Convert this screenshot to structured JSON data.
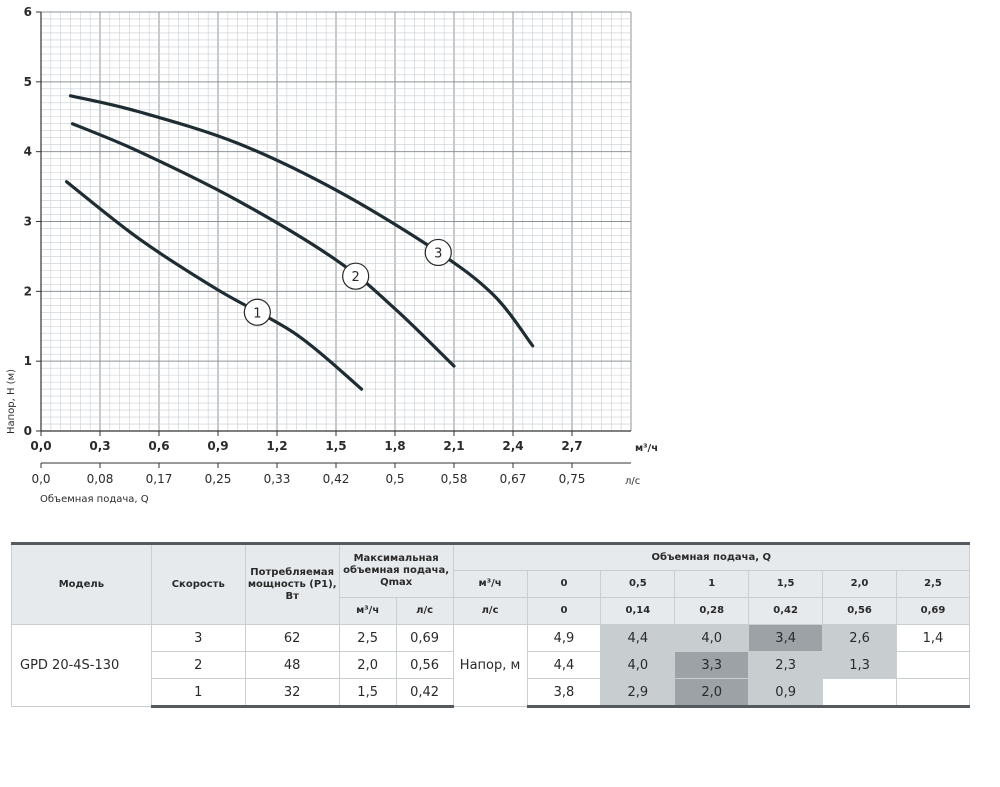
{
  "chart_data": {
    "type": "line",
    "ylabel": "Напор, Н (м)",
    "xlabel": "Объемная подача, Q",
    "x_unit_top": "м³/ч",
    "x_unit_bottom": "л/с",
    "xlim": [
      0,
      3.0
    ],
    "ylim": [
      0,
      6
    ],
    "grid": true,
    "y_ticks": [
      "0",
      "1",
      "2",
      "3",
      "4",
      "5",
      "6"
    ],
    "x_ticks_top": [
      "0,0",
      "0,3",
      "0,6",
      "0,9",
      "1,2",
      "1,5",
      "1,8",
      "2,1",
      "2,4",
      "2,7"
    ],
    "x_ticks_bottom": [
      "0,0",
      "0,08",
      "0,17",
      "0,25",
      "0,33",
      "0,42",
      "0,5",
      "0,58",
      "0,67",
      "0,75"
    ],
    "series": [
      {
        "name": "1",
        "label_at": 1.1,
        "points": [
          [
            0.13,
            3.57
          ],
          [
            0.5,
            2.75
          ],
          [
            0.9,
            2.02
          ],
          [
            1.3,
            1.38
          ],
          [
            1.63,
            0.6
          ]
        ]
      },
      {
        "name": "2",
        "label_at": 1.6,
        "points": [
          [
            0.16,
            4.4
          ],
          [
            0.5,
            4.0
          ],
          [
            1.0,
            3.3
          ],
          [
            1.5,
            2.45
          ],
          [
            1.8,
            1.75
          ],
          [
            2.1,
            0.93
          ]
        ]
      },
      {
        "name": "3",
        "label_at": 2.02,
        "points": [
          [
            0.15,
            4.8
          ],
          [
            0.5,
            4.57
          ],
          [
            1.0,
            4.12
          ],
          [
            1.5,
            3.45
          ],
          [
            2.0,
            2.6
          ],
          [
            2.3,
            1.95
          ],
          [
            2.5,
            1.22
          ]
        ]
      }
    ]
  },
  "table": {
    "headers": {
      "model": "Модель",
      "speed": "Скорость",
      "power": "Потребляемая мощность (P1), Вт",
      "qmax": "Максимальная объемная подача, Qmax",
      "qmax_m3h": "м³/ч",
      "qmax_ls": "л/с",
      "flow": "Объемная подача, Q",
      "flow_m3h_label": "м³/ч",
      "flow_ls_label": "л/с",
      "flow_m3h": [
        "0",
        "0,5",
        "1",
        "1,5",
        "2,0",
        "2,5"
      ],
      "flow_ls": [
        "0",
        "0,14",
        "0,28",
        "0,42",
        "0,56",
        "0,69"
      ]
    },
    "model": "GPD 20-4S-130",
    "head_label": "Напор, м",
    "rows": [
      {
        "speed": "3",
        "power": "62",
        "qmax_m3h": "2,5",
        "qmax_ls": "0,69",
        "heads": [
          "4,9",
          "4,4",
          "4,0",
          "3,4",
          "2,6",
          "1,4"
        ]
      },
      {
        "speed": "2",
        "power": "48",
        "qmax_m3h": "2,0",
        "qmax_ls": "0,56",
        "heads": [
          "4,4",
          "4,0",
          "3,3",
          "2,3",
          "1,3",
          ""
        ]
      },
      {
        "speed": "1",
        "power": "32",
        "qmax_m3h": "1,5",
        "qmax_ls": "0,42",
        "heads": [
          "3,8",
          "2,9",
          "2,0",
          "0,9",
          "",
          ""
        ]
      }
    ]
  },
  "colors": {
    "curve": "#1f2d33",
    "grid_major": "#8e9598",
    "grid_minor": "#c9ced1",
    "shade_light": "#c8cdd0",
    "shade_dark": "#9ca2a6"
  }
}
